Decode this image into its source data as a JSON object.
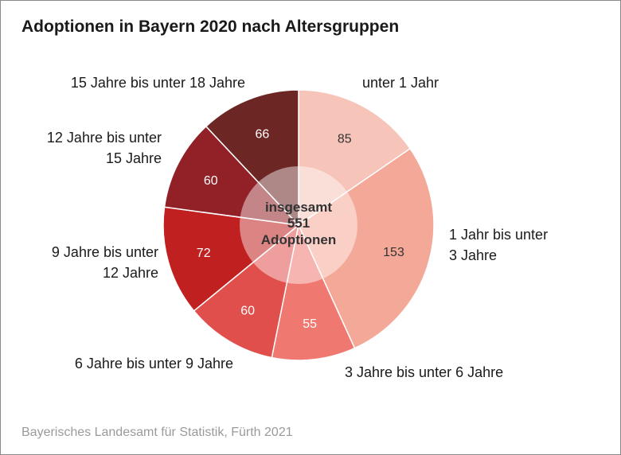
{
  "title": "Adoptionen in Bayern 2020 nach Altersgruppen",
  "source": "Bayerisches Landesamt für Statistik, Fürth 2021",
  "center": {
    "line1": "insgesamt",
    "line2": "551",
    "line3": "Adoptionen"
  },
  "chart_data": {
    "type": "pie",
    "title": "Adoptionen in Bayern 2020 nach Altersgruppen",
    "total": 551,
    "slices": [
      {
        "label": "unter 1 Jahr",
        "value": 85,
        "color": "#f6c4b8"
      },
      {
        "label": "1 Jahr bis unter 3 Jahre",
        "value": 153,
        "color": "#f4a898"
      },
      {
        "label": "3 Jahre bis unter 6 Jahre",
        "value": 55,
        "color": "#ef7870"
      },
      {
        "label": "6 Jahre bis unter 9 Jahre",
        "value": 60,
        "color": "#e04f4c"
      },
      {
        "label": "9 Jahre bis unter 12 Jahre",
        "value": 72,
        "color": "#c0201f"
      },
      {
        "label": "12 Jahre bis unter 15 Jahre",
        "value": 60,
        "color": "#922127"
      },
      {
        "label": "15 Jahre bis unter 18 Jahre",
        "value": 66,
        "color": "#6c2725"
      }
    ]
  }
}
